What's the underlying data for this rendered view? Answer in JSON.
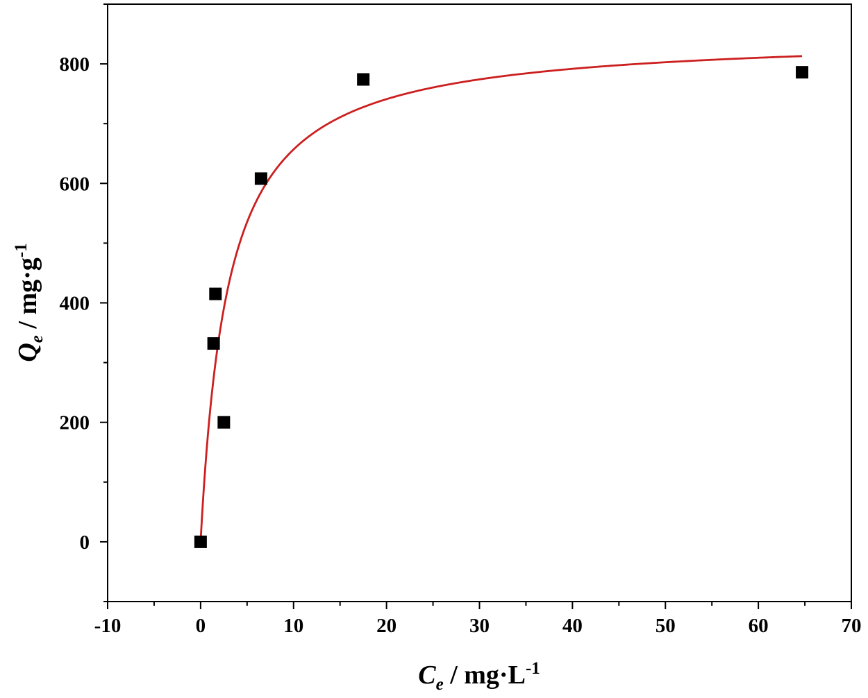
{
  "chart_data": {
    "type": "scatter",
    "title": "",
    "xlabel": {
      "symbol": "C",
      "sub": "e",
      "unit": " / mg·L",
      "exp": "-1"
    },
    "ylabel": {
      "symbol": "Q",
      "sub": "e",
      "unit": " / mg·g",
      "exp": "-1"
    },
    "xlim": [
      -10,
      70
    ],
    "ylim": [
      -100,
      900
    ],
    "xticks": [
      -10,
      0,
      10,
      20,
      30,
      40,
      50,
      60,
      70
    ],
    "xtick_labels": [
      "-10",
      "0",
      "10",
      "20",
      "30",
      "40",
      "50",
      "60",
      "70"
    ],
    "yticks": [
      0,
      200,
      400,
      600,
      800
    ],
    "ytick_labels": [
      "0",
      "200",
      "400",
      "600",
      "800"
    ],
    "grid": false,
    "legend": "none",
    "series": [
      {
        "type": "scatter",
        "marker": "square",
        "color": "#000000",
        "x": [
          0.0,
          1.4,
          1.6,
          2.5,
          6.5,
          17.5,
          64.7
        ],
        "y": [
          0,
          332,
          415,
          200,
          608,
          774,
          786
        ]
      },
      {
        "type": "line",
        "color": "#cc1f1f",
        "model": "langmuir",
        "qmax": 850,
        "KL": 0.34,
        "x_range": [
          0.03,
          64.7
        ]
      }
    ]
  }
}
